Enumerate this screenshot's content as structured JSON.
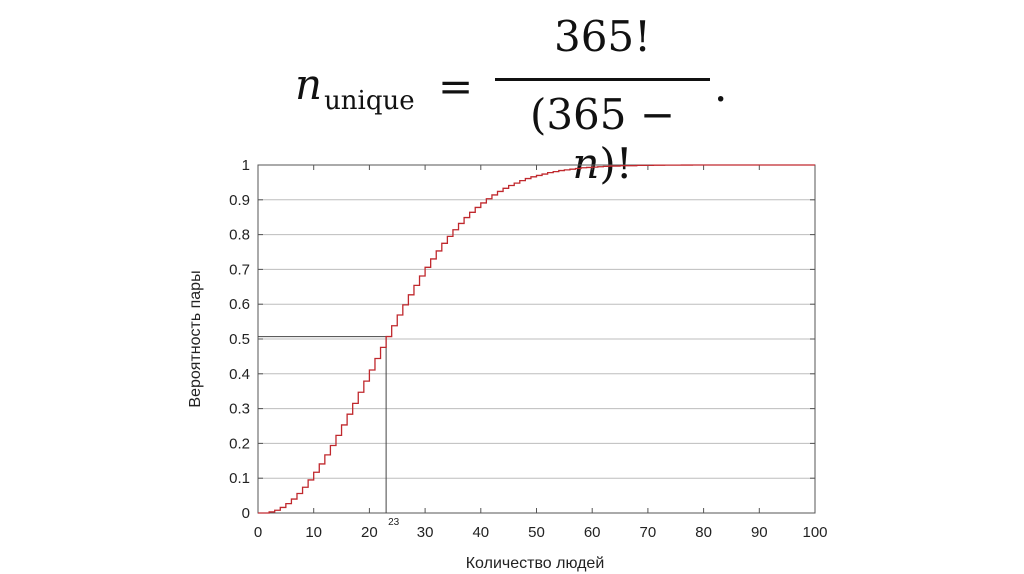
{
  "formula": {
    "lhs_var": "n",
    "lhs_sub": "unique",
    "equals": "=",
    "numerator": "365!",
    "denominator_prefix": "(365 − ",
    "denominator_var": "n",
    "denominator_suffix": ")!",
    "trailing": "."
  },
  "chart_data": {
    "type": "line",
    "step": true,
    "xlabel": "Количество людей",
    "ylabel": "Вероятность пары",
    "xlim": [
      0,
      100
    ],
    "ylim": [
      0,
      1
    ],
    "xticks": [
      "0",
      "10",
      "20",
      "30",
      "40",
      "50",
      "60",
      "70",
      "80",
      "90",
      "100"
    ],
    "yticks": [
      "0",
      "0.1",
      "0.2",
      "0.3",
      "0.4",
      "0.5",
      "0.6",
      "0.7",
      "0.8",
      "0.9",
      "1"
    ],
    "grid": true,
    "line_color": "#c0282d",
    "annotation": {
      "x": 23,
      "y": 0.507,
      "label": "23"
    },
    "series": [
      {
        "x": [
          0,
          1,
          2,
          3,
          4,
          5,
          6,
          7,
          8,
          9,
          10,
          11,
          12,
          13,
          14,
          15,
          16,
          17,
          18,
          19,
          20,
          21,
          22,
          23,
          24,
          25,
          26,
          27,
          28,
          29,
          30,
          31,
          32,
          33,
          34,
          35,
          36,
          37,
          38,
          39,
          40,
          41,
          42,
          43,
          44,
          45,
          46,
          47,
          48,
          49,
          50,
          51,
          52,
          53,
          54,
          55,
          56,
          57,
          58,
          59,
          60,
          61,
          62,
          63,
          64,
          65,
          66,
          67,
          68,
          69,
          70,
          71,
          72,
          73,
          74,
          75,
          76,
          77,
          78,
          79,
          80,
          81,
          82,
          83,
          84,
          85,
          86,
          87,
          88,
          89,
          90,
          91,
          92,
          93,
          94,
          95,
          96,
          97,
          98,
          99,
          100
        ],
        "values": [
          0,
          0,
          0.003,
          0.008,
          0.016,
          0.027,
          0.04,
          0.056,
          0.074,
          0.095,
          0.117,
          0.141,
          0.167,
          0.194,
          0.223,
          0.253,
          0.284,
          0.315,
          0.347,
          0.379,
          0.411,
          0.444,
          0.476,
          0.507,
          0.538,
          0.569,
          0.598,
          0.627,
          0.654,
          0.681,
          0.706,
          0.73,
          0.753,
          0.775,
          0.795,
          0.814,
          0.832,
          0.849,
          0.864,
          0.878,
          0.891,
          0.903,
          0.914,
          0.924,
          0.933,
          0.941,
          0.948,
          0.955,
          0.961,
          0.966,
          0.97,
          0.974,
          0.978,
          0.981,
          0.984,
          0.986,
          0.988,
          0.99,
          0.992,
          0.993,
          0.994,
          0.995,
          0.996,
          0.997,
          0.997,
          0.998,
          0.998,
          0.998,
          0.999,
          0.999,
          0.999,
          0.9994,
          0.9995,
          0.9996,
          0.9997,
          0.9997,
          0.9998,
          0.9998,
          0.9999,
          0.9999,
          0.9999,
          0.9999,
          0.9999,
          0.99995,
          0.99996,
          0.99997,
          0.99998,
          0.99998,
          0.99999,
          0.99999,
          0.99999,
          0.99999,
          0.99999,
          1,
          1,
          1,
          1,
          1,
          1,
          1,
          1
        ]
      }
    ]
  }
}
